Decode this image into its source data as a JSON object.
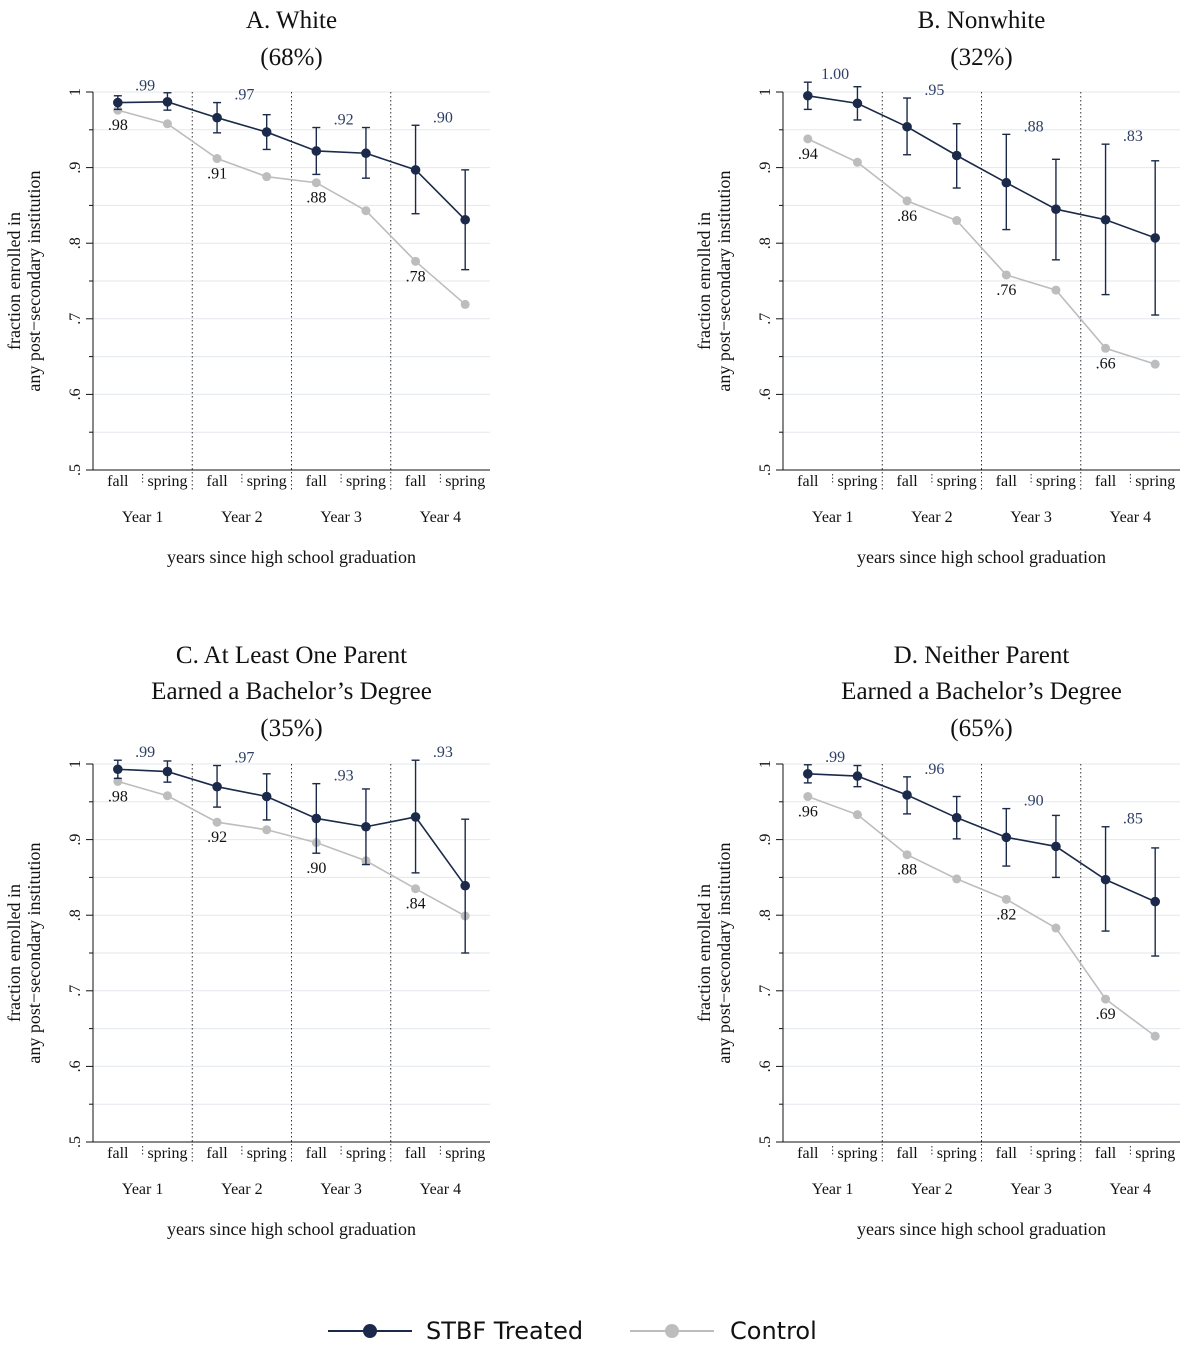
{
  "legend": {
    "treated_label": "STBF Treated",
    "control_label": "Control"
  },
  "colors": {
    "treated": "#1b2a4a",
    "control": "#bdbdbd",
    "treated_label_text": "#2e3f66",
    "grid": "#e3e8ee"
  },
  "chart_data": [
    {
      "type": "line",
      "title_lines": [
        "A. White",
        "(68%)"
      ],
      "xlabel": "years since high school graduation",
      "ylabel_lines": [
        "fraction enrolled in",
        "any post−secondary institution"
      ],
      "ylim": [
        0.5,
        1.0
      ],
      "yticks": [
        ".5",
        ".6",
        ".7",
        ".8",
        ".9",
        "1"
      ],
      "x_ticks": [
        "fall",
        "spring",
        "fall",
        "spring",
        "fall",
        "spring",
        "fall",
        "spring"
      ],
      "year_labels": [
        "Year 1",
        "Year 2",
        "Year 3",
        "Year 4"
      ],
      "series": [
        {
          "name": "STBF Treated",
          "values": [
            0.986,
            0.987,
            0.966,
            0.947,
            0.922,
            0.919,
            0.897,
            0.831
          ],
          "ci_low": [
            0.977,
            0.976,
            0.946,
            0.924,
            0.891,
            0.886,
            0.839,
            0.765
          ],
          "ci_high": [
            0.995,
            0.999,
            0.986,
            0.97,
            0.953,
            0.953,
            0.956,
            0.897
          ]
        },
        {
          "name": "Control",
          "values": [
            0.976,
            0.958,
            0.912,
            0.888,
            0.88,
            0.843,
            0.776,
            0.719
          ]
        }
      ],
      "treated_labels": [
        ".99",
        ".97",
        ".92",
        ".90"
      ],
      "control_labels": [
        ".98",
        ".91",
        ".88",
        ".78"
      ]
    },
    {
      "type": "line",
      "title_lines": [
        "B. Nonwhite",
        "(32%)"
      ],
      "xlabel": "years since high school graduation",
      "ylabel_lines": [
        "fraction enrolled in",
        "any post−secondary institution"
      ],
      "ylim": [
        0.5,
        1.0
      ],
      "yticks": [
        ".5",
        ".6",
        ".7",
        ".8",
        ".9",
        "1"
      ],
      "x_ticks": [
        "fall",
        "spring",
        "fall",
        "spring",
        "fall",
        "spring",
        "fall",
        "spring"
      ],
      "year_labels": [
        "Year 1",
        "Year 2",
        "Year 3",
        "Year 4"
      ],
      "series": [
        {
          "name": "STBF Treated",
          "values": [
            0.995,
            0.985,
            0.954,
            0.916,
            0.88,
            0.845,
            0.831,
            0.807
          ],
          "ci_low": [
            0.977,
            0.963,
            0.917,
            0.873,
            0.818,
            0.778,
            0.732,
            0.705
          ],
          "ci_high": [
            1.013,
            1.007,
            0.992,
            0.958,
            0.944,
            0.911,
            0.931,
            0.909
          ]
        },
        {
          "name": "Control",
          "values": [
            0.938,
            0.907,
            0.856,
            0.83,
            0.758,
            0.738,
            0.661,
            0.64
          ]
        }
      ],
      "treated_labels": [
        "1.00",
        ".95",
        ".88",
        ".83"
      ],
      "control_labels": [
        ".94",
        ".86",
        ".76",
        ".66"
      ]
    },
    {
      "type": "line",
      "title_lines": [
        "C. At Least One Parent",
        "Earned a Bachelor’s Degree",
        "(35%)"
      ],
      "xlabel": "years since high school graduation",
      "ylabel_lines": [
        "fraction enrolled in",
        "any post−secondary institution"
      ],
      "ylim": [
        0.5,
        1.0
      ],
      "yticks": [
        ".5",
        ".6",
        ".7",
        ".8",
        ".9",
        "1"
      ],
      "x_ticks": [
        "fall",
        "spring",
        "fall",
        "spring",
        "fall",
        "spring",
        "fall",
        "spring"
      ],
      "year_labels": [
        "Year 1",
        "Year 2",
        "Year 3",
        "Year 4"
      ],
      "series": [
        {
          "name": "STBF Treated",
          "values": [
            0.993,
            0.99,
            0.97,
            0.957,
            0.928,
            0.917,
            0.93,
            0.839
          ],
          "ci_low": [
            0.981,
            0.976,
            0.943,
            0.926,
            0.882,
            0.867,
            0.856,
            0.75
          ],
          "ci_high": [
            1.005,
            1.004,
            0.998,
            0.987,
            0.974,
            0.967,
            1.005,
            0.927
          ]
        },
        {
          "name": "Control",
          "values": [
            0.977,
            0.958,
            0.923,
            0.913,
            0.896,
            0.872,
            0.835,
            0.799
          ]
        }
      ],
      "treated_labels": [
        ".99",
        ".97",
        ".93",
        ".93"
      ],
      "control_labels": [
        ".98",
        ".92",
        ".90",
        ".84"
      ]
    },
    {
      "type": "line",
      "title_lines": [
        "D. Neither Parent",
        "Earned a Bachelor’s Degree",
        "(65%)"
      ],
      "xlabel": "years since high school graduation",
      "ylabel_lines": [
        "fraction enrolled in",
        "any post−secondary institution"
      ],
      "ylim": [
        0.5,
        1.0
      ],
      "yticks": [
        ".5",
        ".6",
        ".7",
        ".8",
        ".9",
        "1"
      ],
      "x_ticks": [
        "fall",
        "spring",
        "fall",
        "spring",
        "fall",
        "spring",
        "fall",
        "spring"
      ],
      "year_labels": [
        "Year 1",
        "Year 2",
        "Year 3",
        "Year 4"
      ],
      "series": [
        {
          "name": "STBF Treated",
          "values": [
            0.987,
            0.984,
            0.959,
            0.929,
            0.903,
            0.891,
            0.847,
            0.818
          ],
          "ci_low": [
            0.975,
            0.97,
            0.934,
            0.901,
            0.865,
            0.85,
            0.779,
            0.746
          ],
          "ci_high": [
            0.999,
            0.998,
            0.983,
            0.957,
            0.941,
            0.932,
            0.917,
            0.889
          ]
        },
        {
          "name": "Control",
          "values": [
            0.957,
            0.933,
            0.88,
            0.848,
            0.821,
            0.783,
            0.689,
            0.64
          ]
        }
      ],
      "treated_labels": [
        ".99",
        ".96",
        ".90",
        ".85"
      ],
      "control_labels": [
        ".96",
        ".88",
        ".82",
        ".69"
      ]
    }
  ]
}
